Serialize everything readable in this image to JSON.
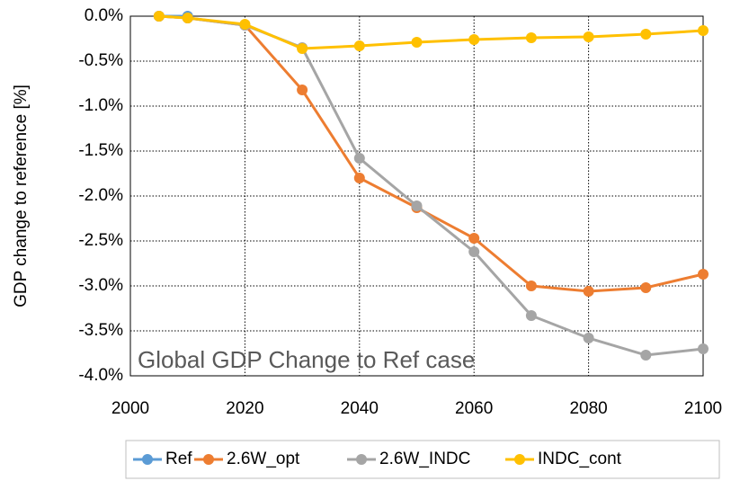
{
  "chart_data": {
    "type": "line",
    "annotation": "Global GDP Change to Ref case",
    "y_label": "GDP change to reference [%]",
    "x": [
      2005,
      2010,
      2020,
      2030,
      2040,
      2050,
      2060,
      2070,
      2080,
      2090,
      2100
    ],
    "series": [
      {
        "name": "Ref",
        "color": "#5b9bd5",
        "values": [
          0,
          0,
          null,
          null,
          null,
          null,
          null,
          null,
          null,
          null,
          null
        ]
      },
      {
        "name": "2.6W_opt",
        "color": "#ed7d31",
        "values": [
          0,
          -0.02,
          -0.1,
          -0.82,
          -1.8,
          -2.13,
          -2.47,
          -3.0,
          -3.06,
          -3.02,
          -2.87
        ]
      },
      {
        "name": "2.6W_INDC",
        "color": "#a5a5a5",
        "values": [
          0,
          -0.02,
          -0.1,
          -0.35,
          -1.58,
          -2.11,
          -2.62,
          -3.33,
          -3.58,
          -3.77,
          -3.7
        ]
      },
      {
        "name": "INDC_cont",
        "color": "#ffc000",
        "values": [
          0,
          -0.02,
          -0.09,
          -0.36,
          -0.33,
          -0.29,
          -0.26,
          -0.24,
          -0.23,
          -0.2,
          -0.16
        ]
      }
    ],
    "xlim": [
      2000,
      2100
    ],
    "xticks": [
      2000,
      2020,
      2040,
      2060,
      2080,
      2100
    ],
    "ylim": [
      -4,
      0
    ],
    "yticks": [
      {
        "value": 0,
        "label": "0.0%"
      },
      {
        "value": -0.5,
        "label": "-0.5%"
      },
      {
        "value": -1,
        "label": "-1.0%"
      },
      {
        "value": -1.5,
        "label": "-1.5%"
      },
      {
        "value": -2,
        "label": "-2.0%"
      },
      {
        "value": -2.5,
        "label": "-2.5%"
      },
      {
        "value": -3,
        "label": "-3.0%"
      },
      {
        "value": -3.5,
        "label": "-3.5%"
      },
      {
        "value": -4,
        "label": "-4.0%"
      }
    ],
    "grid": true,
    "legend": "bottom"
  }
}
